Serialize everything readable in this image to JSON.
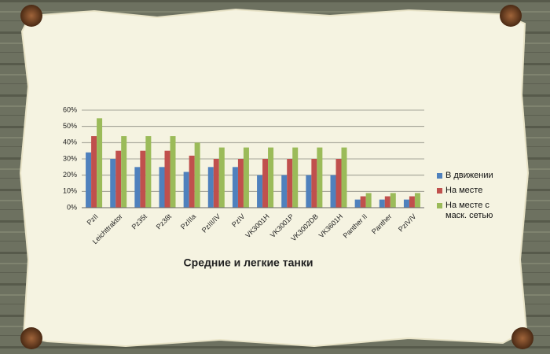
{
  "chart_data": {
    "type": "bar",
    "title": "Средние и легкие танки",
    "categories": [
      "PzII",
      "Leichttraktor",
      "Pz35t",
      "Pz38t",
      "PzIIIa",
      "PzIII/IV",
      "PzIV",
      "VK3001H",
      "VK3001P",
      "VK3002DB",
      "VK3601H",
      "Panther II",
      "Panther",
      "PzIV/V"
    ],
    "series": [
      {
        "name": "В движении",
        "color": "#4f81bd",
        "values": [
          34,
          30,
          25,
          25,
          22,
          25,
          25,
          20,
          20,
          20,
          20,
          5,
          5,
          5
        ]
      },
      {
        "name": "На месте",
        "color": "#c0504d",
        "values": [
          44,
          35,
          35,
          35,
          32,
          30,
          30,
          30,
          30,
          30,
          30,
          7,
          7,
          7
        ]
      },
      {
        "name": "На месте с маск. сетью",
        "color": "#9bbb59",
        "values": [
          55,
          44,
          44,
          44,
          40,
          37,
          37,
          37,
          37,
          37,
          37,
          9,
          9,
          9
        ]
      }
    ],
    "ylim": [
      0,
      60
    ],
    "yticks": [
      {
        "value": 0,
        "label": "0%"
      },
      {
        "value": 10,
        "label": "10%"
      },
      {
        "value": 20,
        "label": "20%"
      },
      {
        "value": 30,
        "label": "30%"
      },
      {
        "value": 40,
        "label": "40%"
      },
      {
        "value": 50,
        "label": "50%"
      },
      {
        "value": 60,
        "label": "60%"
      }
    ],
    "grid": true,
    "legend": "right"
  }
}
